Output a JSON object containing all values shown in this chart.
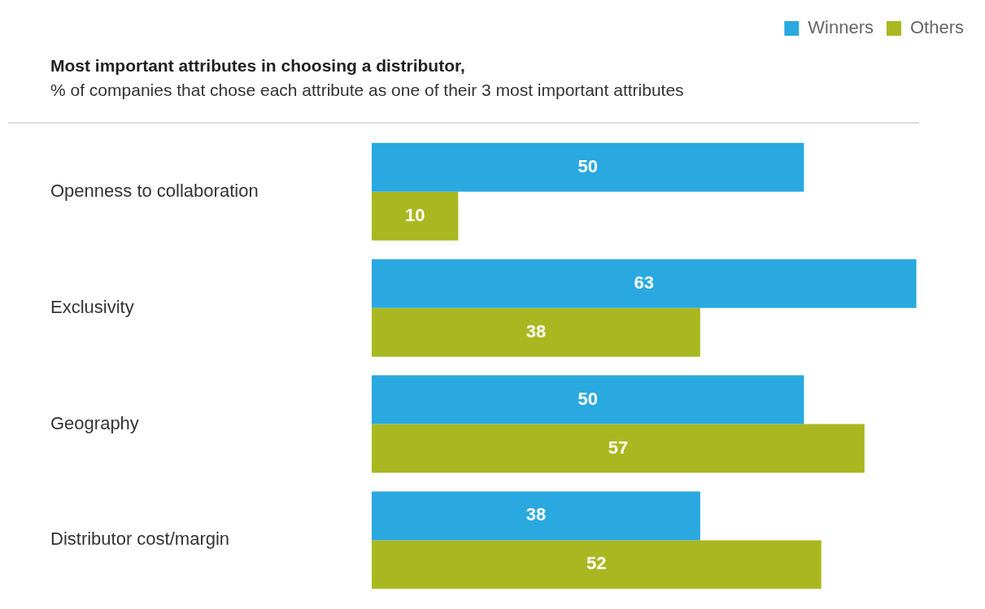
{
  "chart_data": {
    "type": "bar",
    "orientation": "horizontal",
    "title": "Most important attributes in choosing a distributor,",
    "subtitle": "% of companies that chose each attribute as one of their 3 most important attributes",
    "categories": [
      "Openness to collaboration",
      "Exclusivity",
      "Geography",
      "Distributor cost/margin"
    ],
    "series": [
      {
        "name": "Winners",
        "color": "#29a9e0",
        "values": [
          50,
          63,
          50,
          38
        ]
      },
      {
        "name": "Others",
        "color": "#a9b820",
        "values": [
          10,
          38,
          57,
          52
        ]
      }
    ],
    "tick_labels": "y",
    "data_labels": true,
    "legend": "top right"
  }
}
